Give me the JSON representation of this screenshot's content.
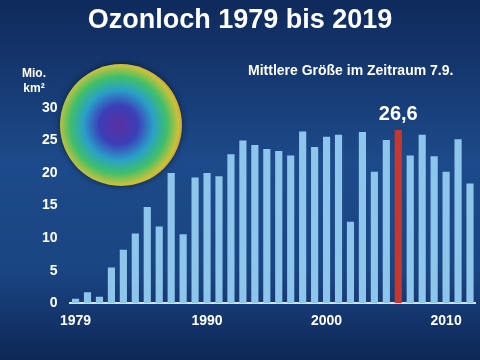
{
  "chart_data": {
    "type": "bar",
    "title": "Ozonloch 1979 bis 2019",
    "subtitle": "Mittlere Größe im Zeitraum 7.9.",
    "y_label": "Mio. km²",
    "categories": [
      "1979",
      null,
      null,
      null,
      null,
      null,
      null,
      null,
      null,
      null,
      null,
      "1990",
      null,
      null,
      null,
      null,
      null,
      null,
      null,
      null,
      null,
      "2000",
      null,
      null,
      null,
      null,
      null,
      null,
      null,
      null,
      null,
      "2010",
      null,
      null
    ],
    "values": [
      0.7,
      1.7,
      1.0,
      5.5,
      8.2,
      10.7,
      14.8,
      11.8,
      20.0,
      10.6,
      19.3,
      20.0,
      19.5,
      22.9,
      25.0,
      24.3,
      23.7,
      23.4,
      22.7,
      26.4,
      24.0,
      25.6,
      25.9,
      12.5,
      26.3,
      20.2,
      25.1,
      26.6,
      22.7,
      25.9,
      22.6,
      20.2,
      25.2,
      18.4
    ],
    "value_labels": [
      null,
      null,
      null,
      null,
      null,
      null,
      null,
      null,
      null,
      null,
      null,
      null,
      null,
      null,
      null,
      null,
      null,
      null,
      null,
      null,
      null,
      null,
      null,
      null,
      null,
      null,
      null,
      "26,6",
      null,
      null,
      null,
      null,
      null,
      null
    ],
    "colors": [
      "#8ec5ea",
      "#8ec5ea",
      "#8ec5ea",
      "#8ec5ea",
      "#8ec5ea",
      "#8ec5ea",
      "#8ec5ea",
      "#8ec5ea",
      "#8ec5ea",
      "#8ec5ea",
      "#8ec5ea",
      "#8ec5ea",
      "#8ec5ea",
      "#8ec5ea",
      "#8ec5ea",
      "#8ec5ea",
      "#8ec5ea",
      "#8ec5ea",
      "#8ec5ea",
      "#8ec5ea",
      "#8ec5ea",
      "#8ec5ea",
      "#8ec5ea",
      "#8ec5ea",
      "#8ec5ea",
      "#8ec5ea",
      "#8ec5ea",
      "#c8372d",
      "#8ec5ea",
      "#8ec5ea",
      "#8ec5ea",
      "#8ec5ea",
      "#8ec5ea",
      "#8ec5ea"
    ],
    "ylim": [
      0,
      30
    ],
    "yticks": [
      0,
      5,
      10,
      15,
      20,
      25,
      30
    ],
    "grid": false
  }
}
